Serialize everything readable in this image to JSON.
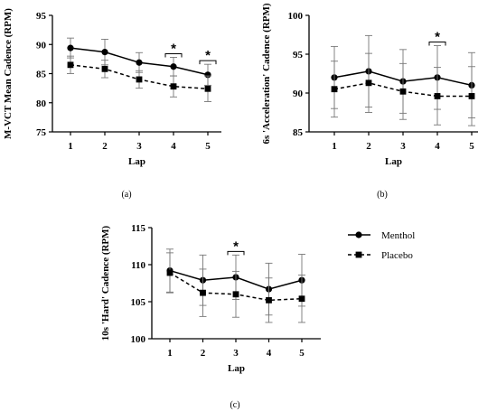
{
  "chart_data": [
    {
      "type": "line",
      "panel_label": "(a)",
      "xlabel": "Lap",
      "ylabel": "M-VCT Mean Cadence (RPM)",
      "x": [
        1,
        2,
        3,
        4,
        5
      ],
      "xticks": [
        "1",
        "2",
        "3",
        "4",
        "5"
      ],
      "ylim": [
        75,
        95
      ],
      "yticks": [
        75,
        80,
        85,
        90,
        95
      ],
      "series": [
        {
          "name": "Menthol",
          "values": [
            89.4,
            88.7,
            86.9,
            86.2,
            84.8
          ],
          "sd": [
            1.7,
            2.2,
            1.7,
            1.6,
            1.8
          ],
          "style": "solid",
          "marker": "circle"
        },
        {
          "name": "Placebo",
          "values": [
            86.5,
            85.8,
            84.0,
            82.8,
            82.4
          ],
          "sd": [
            1.5,
            1.5,
            1.5,
            1.8,
            2.2
          ],
          "style": "dashed",
          "marker": "square"
        }
      ],
      "significance": [
        {
          "x": 4,
          "label": "*"
        },
        {
          "x": 5,
          "label": "*"
        }
      ]
    },
    {
      "type": "line",
      "panel_label": "(b)",
      "xlabel": "Lap",
      "ylabel": "6s 'Acceleration' Cadence (RPM)",
      "x": [
        1,
        2,
        3,
        4,
        5
      ],
      "xticks": [
        "1",
        "2",
        "3",
        "4",
        "5"
      ],
      "ylim": [
        85,
        100
      ],
      "yticks": [
        85,
        90,
        95,
        100
      ],
      "series": [
        {
          "name": "Menthol",
          "values": [
            92.0,
            92.8,
            91.5,
            92.0,
            91.0
          ],
          "sd": [
            4.0,
            4.6,
            4.1,
            4.1,
            4.2
          ],
          "style": "solid",
          "marker": "circle"
        },
        {
          "name": "Placebo",
          "values": [
            90.5,
            91.3,
            90.2,
            89.6,
            89.6
          ],
          "sd": [
            3.6,
            3.8,
            3.6,
            3.7,
            3.8
          ],
          "style": "dashed",
          "marker": "square"
        }
      ],
      "significance": [
        {
          "x": 4,
          "label": "*"
        }
      ]
    },
    {
      "type": "line",
      "panel_label": "(c)",
      "xlabel": "Lap",
      "ylabel": "10s 'Hard' Cadence (RPM)",
      "x": [
        1,
        2,
        3,
        4,
        5
      ],
      "xticks": [
        "1",
        "2",
        "3",
        "4",
        "5"
      ],
      "ylim": [
        100,
        115
      ],
      "yticks": [
        100,
        105,
        110,
        115
      ],
      "series": [
        {
          "name": "Menthol",
          "values": [
            109.2,
            107.9,
            108.3,
            106.7,
            107.9
          ],
          "sd": [
            2.9,
            3.4,
            3.0,
            3.5,
            3.5
          ],
          "style": "solid",
          "marker": "circle"
        },
        {
          "name": "Placebo",
          "values": [
            108.9,
            106.2,
            106.0,
            105.2,
            105.4
          ],
          "sd": [
            2.7,
            3.2,
            3.1,
            3.0,
            3.2
          ],
          "style": "dashed",
          "marker": "square"
        }
      ],
      "significance": [
        {
          "x": 3,
          "label": "*"
        }
      ]
    }
  ],
  "legend": {
    "placement": "right of panel (c)",
    "entries": [
      {
        "label": "Menthol",
        "style": "solid",
        "marker": "circle"
      },
      {
        "label": "Placebo",
        "style": "dashed",
        "marker": "square"
      }
    ]
  }
}
